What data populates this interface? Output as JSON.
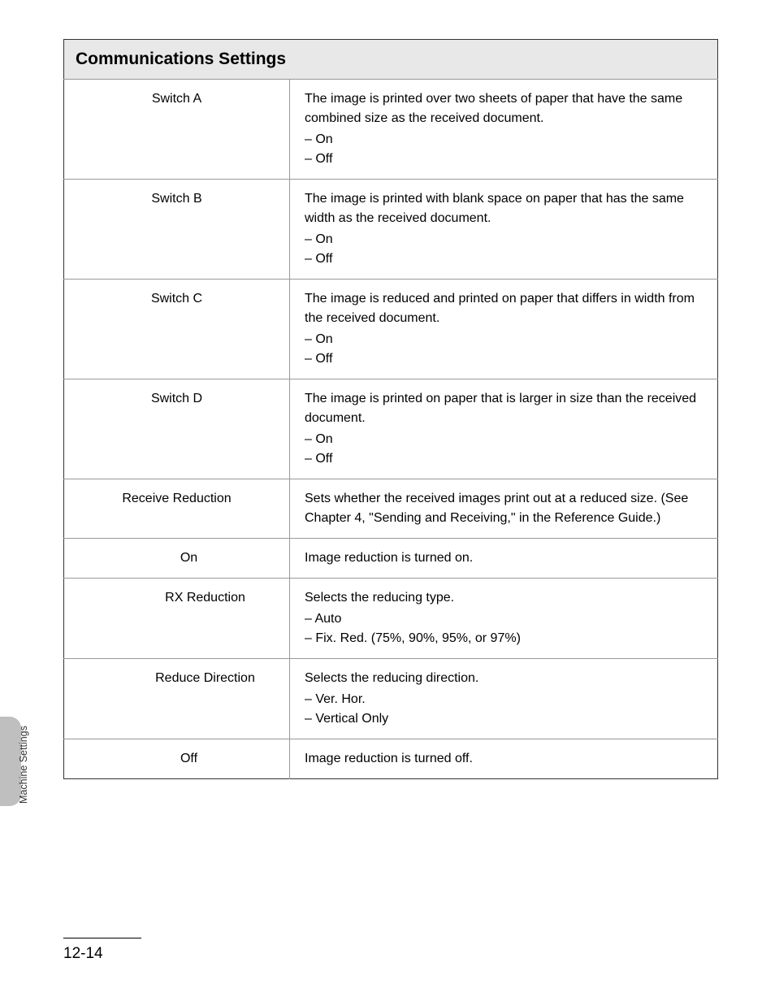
{
  "table": {
    "header": "Communications Settings",
    "rows": [
      {
        "label": "Switch A",
        "indent": 0,
        "desc": "The image is printed over two sheets of paper that have the same combined size as the received document.",
        "options": [
          "On",
          "Off"
        ]
      },
      {
        "label": "Switch B",
        "indent": 0,
        "desc": "The image is printed with blank space on paper that has the same width as the received document.",
        "options": [
          "On",
          "Off"
        ]
      },
      {
        "label": "Switch C",
        "indent": 0,
        "desc": "The image is reduced and printed on paper that differs in width from the received document.",
        "options": [
          "On",
          "Off"
        ]
      },
      {
        "label": "Switch D",
        "indent": 0,
        "desc": "The image is printed on paper that is larger in size than the received document.",
        "options": [
          "On",
          "Off"
        ]
      },
      {
        "label": "Receive Reduction",
        "indent": 0,
        "desc": "Sets whether the received images print out at a reduced size. (See Chapter 4, \"Sending and Receiving,\" in the Reference Guide.)",
        "options": []
      },
      {
        "label": "On",
        "indent": 1,
        "desc": "Image reduction is turned on.",
        "options": []
      },
      {
        "label": "RX Reduction",
        "indent": 2,
        "desc": "Selects the reducing type.",
        "options": [
          "Auto",
          "Fix. Red. (75%, 90%, 95%, or 97%)"
        ]
      },
      {
        "label": "Reduce Direction",
        "indent": 2,
        "desc": "Selects the reducing direction.",
        "options": [
          "Ver. Hor.",
          "Vertical Only"
        ]
      },
      {
        "label": "Off",
        "indent": 1,
        "desc": "Image reduction is turned off.",
        "options": []
      }
    ]
  },
  "sideLabel": "Machine Settings",
  "pageNumber": "12-14"
}
